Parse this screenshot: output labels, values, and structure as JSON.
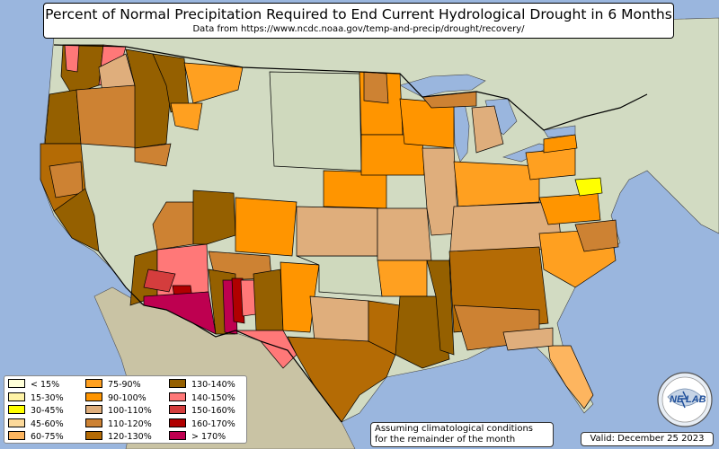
{
  "title": "Percent of Normal Precipitation Required to End Current Hydrological Drought in 6 Months",
  "subtitle": "Data from https://www.ncdc.noaa.gov/temp-and-precip/drought/recovery/",
  "note": [
    "Assuming climatological conditions",
    "for the remainder of the month"
  ],
  "valid": "Valid: December 25 2023",
  "logo_text": [
    "NE",
    "LAB"
  ],
  "colors": {
    "ocean": "#9ab6de",
    "land": "#cfd9bd",
    "lakes": "#9ab6de",
    "borders": "#000000"
  },
  "legend": [
    {
      "label": "< 15%",
      "color": "#ffffd9"
    },
    {
      "label": "15-30%",
      "color": "#fff3a6"
    },
    {
      "label": "30-45%",
      "color": "#ffff00"
    },
    {
      "label": "45-60%",
      "color": "#fcd99a"
    },
    {
      "label": "60-75%",
      "color": "#fdb55f"
    },
    {
      "label": "75-90%",
      "color": "#ffa020"
    },
    {
      "label": "90-100%",
      "color": "#ff9500"
    },
    {
      "label": "100-110%",
      "color": "#dfae7c"
    },
    {
      "label": "110-120%",
      "color": "#cd8233"
    },
    {
      "label": "120-130%",
      "color": "#b46b05"
    },
    {
      "label": "130-140%",
      "color": "#956000"
    },
    {
      "label": "140-150%",
      "color": "#ff7878"
    },
    {
      "label": "150-160%",
      "color": "#d43d3d"
    },
    {
      "label": "160-170%",
      "color": "#b00000"
    },
    {
      "label": "> 170%",
      "color": "#be0050"
    }
  ]
}
